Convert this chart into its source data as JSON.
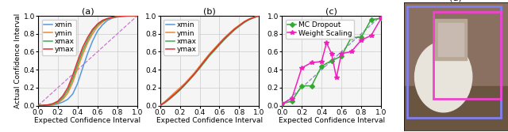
{
  "panel_a": {
    "title": "(a)",
    "xlabel": "Expected Confidence Interval",
    "ylabel": "Actual Confidence Interval",
    "xlim": [
      0.0,
      1.0
    ],
    "ylim": [
      0.0,
      1.0
    ],
    "xticks": [
      0.0,
      0.2,
      0.4,
      0.6,
      0.8,
      1.0
    ],
    "yticks": [
      0.0,
      0.2,
      0.4,
      0.6,
      0.8,
      1.0
    ],
    "diag_color": "#cc77cc",
    "diag_style": "--",
    "curves": {
      "xmin": {
        "color": "#5599dd",
        "x": [
          0.0,
          0.05,
          0.1,
          0.15,
          0.2,
          0.25,
          0.3,
          0.35,
          0.4,
          0.45,
          0.5,
          0.55,
          0.6,
          0.65,
          0.7,
          0.75,
          0.8,
          0.85,
          0.9,
          0.95,
          1.0
        ],
        "y": [
          0.0,
          0.001,
          0.003,
          0.008,
          0.02,
          0.04,
          0.07,
          0.13,
          0.25,
          0.42,
          0.58,
          0.72,
          0.83,
          0.9,
          0.95,
          0.975,
          0.988,
          0.995,
          0.998,
          0.999,
          1.0
        ]
      },
      "ymin": {
        "color": "#ee8833",
        "x": [
          0.0,
          0.05,
          0.1,
          0.15,
          0.2,
          0.25,
          0.3,
          0.35,
          0.4,
          0.45,
          0.5,
          0.55,
          0.6,
          0.65,
          0.7,
          0.75,
          0.8,
          0.85,
          0.9,
          0.95,
          1.0
        ],
        "y": [
          0.0,
          0.001,
          0.004,
          0.012,
          0.03,
          0.07,
          0.14,
          0.26,
          0.42,
          0.57,
          0.7,
          0.8,
          0.88,
          0.93,
          0.965,
          0.98,
          0.991,
          0.996,
          0.999,
          1.0,
          1.0
        ]
      },
      "xmax": {
        "color": "#44aa55",
        "x": [
          0.0,
          0.05,
          0.1,
          0.15,
          0.2,
          0.25,
          0.3,
          0.35,
          0.4,
          0.45,
          0.5,
          0.55,
          0.6,
          0.65,
          0.7,
          0.75,
          0.8,
          0.85,
          0.9,
          0.95,
          1.0
        ],
        "y": [
          0.0,
          0.002,
          0.006,
          0.018,
          0.04,
          0.09,
          0.17,
          0.3,
          0.46,
          0.61,
          0.73,
          0.83,
          0.9,
          0.94,
          0.968,
          0.982,
          0.992,
          0.997,
          0.999,
          1.0,
          1.0
        ]
      },
      "ymax": {
        "color": "#dd3333",
        "x": [
          0.0,
          0.05,
          0.1,
          0.15,
          0.2,
          0.25,
          0.3,
          0.35,
          0.4,
          0.45,
          0.5,
          0.55,
          0.6,
          0.65,
          0.7,
          0.75,
          0.8,
          0.85,
          0.9,
          0.95,
          1.0
        ],
        "y": [
          0.0,
          0.003,
          0.009,
          0.022,
          0.05,
          0.11,
          0.2,
          0.34,
          0.5,
          0.65,
          0.76,
          0.85,
          0.91,
          0.95,
          0.97,
          0.984,
          0.992,
          0.997,
          0.999,
          1.0,
          1.0
        ]
      }
    }
  },
  "panel_b": {
    "title": "(b)",
    "xlabel": "Expected Confidence Interval",
    "ylabel": "",
    "xlim": [
      0.0,
      1.0
    ],
    "ylim": [
      0.0,
      1.0
    ],
    "xticks": [
      0.0,
      0.2,
      0.4,
      0.6,
      0.8,
      1.0
    ],
    "yticks": [
      0.0,
      0.2,
      0.4,
      0.6,
      0.8,
      1.0
    ],
    "curves": {
      "xmin": {
        "color": "#5599dd",
        "x": [
          0.0,
          0.05,
          0.1,
          0.15,
          0.2,
          0.25,
          0.3,
          0.35,
          0.4,
          0.45,
          0.5,
          0.55,
          0.6,
          0.65,
          0.7,
          0.75,
          0.8,
          0.85,
          0.9,
          0.95,
          1.0
        ],
        "y": [
          0.0,
          0.04,
          0.09,
          0.13,
          0.18,
          0.24,
          0.3,
          0.36,
          0.43,
          0.5,
          0.57,
          0.63,
          0.69,
          0.75,
          0.8,
          0.85,
          0.89,
          0.93,
          0.96,
          0.985,
          1.0
        ]
      },
      "ymin": {
        "color": "#ee8833",
        "x": [
          0.0,
          0.05,
          0.1,
          0.15,
          0.2,
          0.25,
          0.3,
          0.35,
          0.4,
          0.45,
          0.5,
          0.55,
          0.6,
          0.65,
          0.7,
          0.75,
          0.8,
          0.85,
          0.9,
          0.95,
          1.0
        ],
        "y": [
          0.0,
          0.046,
          0.097,
          0.148,
          0.198,
          0.248,
          0.308,
          0.37,
          0.44,
          0.51,
          0.578,
          0.638,
          0.698,
          0.757,
          0.808,
          0.857,
          0.897,
          0.937,
          0.966,
          0.986,
          1.0
        ]
      },
      "xmax": {
        "color": "#44aa55",
        "x": [
          0.0,
          0.05,
          0.1,
          0.15,
          0.2,
          0.25,
          0.3,
          0.35,
          0.4,
          0.45,
          0.5,
          0.55,
          0.6,
          0.65,
          0.7,
          0.75,
          0.8,
          0.85,
          0.9,
          0.95,
          1.0
        ],
        "y": [
          0.0,
          0.032,
          0.075,
          0.122,
          0.172,
          0.228,
          0.288,
          0.35,
          0.416,
          0.485,
          0.555,
          0.615,
          0.676,
          0.735,
          0.789,
          0.841,
          0.884,
          0.925,
          0.958,
          0.981,
          1.0
        ]
      },
      "ymax": {
        "color": "#dd3333",
        "x": [
          0.0,
          0.05,
          0.1,
          0.15,
          0.2,
          0.25,
          0.3,
          0.35,
          0.4,
          0.45,
          0.5,
          0.55,
          0.6,
          0.65,
          0.7,
          0.75,
          0.8,
          0.85,
          0.9,
          0.95,
          1.0
        ],
        "y": [
          0.0,
          0.038,
          0.082,
          0.13,
          0.18,
          0.235,
          0.295,
          0.357,
          0.428,
          0.498,
          0.567,
          0.627,
          0.688,
          0.746,
          0.798,
          0.85,
          0.891,
          0.932,
          0.962,
          0.983,
          1.0
        ]
      }
    }
  },
  "panel_c": {
    "title": "(c)",
    "xlabel": "Expected Confidence Interval",
    "ylabel": "",
    "xlim": [
      0.0,
      1.0
    ],
    "ylim": [
      0.0,
      1.0
    ],
    "xticks": [
      0.0,
      0.2,
      0.4,
      0.6,
      0.8,
      1.0
    ],
    "yticks": [
      0.0,
      0.2,
      0.4,
      0.6,
      0.8,
      1.0
    ],
    "diag_color": "#8888cc",
    "diag_style": "--",
    "curves": {
      "MC Dropout": {
        "color": "#33aa33",
        "marker": "D",
        "ms": 3,
        "x": [
          0.0,
          0.1,
          0.2,
          0.3,
          0.4,
          0.5,
          0.6,
          0.7,
          0.8,
          0.9,
          1.0
        ],
        "y": [
          0.02,
          0.05,
          0.22,
          0.22,
          0.44,
          0.5,
          0.55,
          0.76,
          0.76,
          0.96,
          0.97
        ]
      },
      "Weight Scaling": {
        "color": "#ee22bb",
        "marker": "*",
        "ms": 4,
        "x": [
          0.0,
          0.1,
          0.2,
          0.3,
          0.4,
          0.45,
          0.5,
          0.55,
          0.6,
          0.7,
          0.8,
          0.9,
          1.0
        ],
        "y": [
          0.02,
          0.08,
          0.42,
          0.48,
          0.49,
          0.7,
          0.58,
          0.31,
          0.58,
          0.6,
          0.73,
          0.78,
          0.97
        ]
      }
    }
  },
  "background_color": "#ffffff",
  "legend_fontsize": 6.5,
  "tick_fontsize": 6.5,
  "label_fontsize": 6.5,
  "title_fontsize": 8,
  "dog_bg": "#8a7060",
  "dog_floor": "#6a5540",
  "dog_body": "#e8e0d0",
  "box_blue": "#8080ee",
  "box_pink": "#ee44cc",
  "box2_blue": "#aaaaff",
  "box2_pink": "#ff88dd"
}
